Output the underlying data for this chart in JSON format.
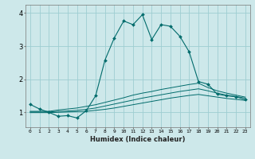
{
  "xlabel": "Humidex (Indice chaleur)",
  "bg_color": "#cde8ea",
  "grid_color": "#9ecdd1",
  "line_color": "#006b6b",
  "xlim": [
    -0.5,
    23.5
  ],
  "ylim": [
    0.55,
    4.25
  ],
  "yticks": [
    1,
    2,
    3,
    4
  ],
  "xticks": [
    0,
    1,
    2,
    3,
    4,
    5,
    6,
    7,
    8,
    9,
    10,
    11,
    12,
    13,
    14,
    15,
    16,
    17,
    18,
    19,
    20,
    21,
    22,
    23
  ],
  "line1_x": [
    0,
    1,
    2,
    3,
    4,
    5,
    6,
    7,
    8,
    9,
    10,
    11,
    12,
    13,
    14,
    15,
    16,
    17,
    18,
    19,
    20,
    21,
    22,
    23
  ],
  "line1_y": [
    1.24,
    1.1,
    1.0,
    0.88,
    0.9,
    0.83,
    1.05,
    1.5,
    2.58,
    3.25,
    3.76,
    3.65,
    3.95,
    3.2,
    3.65,
    3.6,
    3.3,
    2.83,
    1.93,
    1.85,
    1.55,
    1.5,
    1.47,
    1.38
  ],
  "line2_x": [
    0,
    1,
    2,
    3,
    4,
    5,
    6,
    7,
    8,
    9,
    10,
    11,
    12,
    13,
    14,
    15,
    16,
    17,
    18,
    19,
    20,
    21,
    22,
    23
  ],
  "line2_y": [
    1.03,
    1.03,
    1.03,
    1.07,
    1.1,
    1.13,
    1.18,
    1.23,
    1.3,
    1.37,
    1.44,
    1.52,
    1.58,
    1.63,
    1.69,
    1.74,
    1.79,
    1.84,
    1.88,
    1.75,
    1.65,
    1.58,
    1.52,
    1.46
  ],
  "line3_x": [
    0,
    1,
    2,
    3,
    4,
    5,
    6,
    7,
    8,
    9,
    10,
    11,
    12,
    13,
    14,
    15,
    16,
    17,
    18,
    19,
    20,
    21,
    22,
    23
  ],
  "line3_y": [
    1.01,
    1.01,
    1.01,
    1.03,
    1.04,
    1.06,
    1.09,
    1.13,
    1.19,
    1.25,
    1.31,
    1.37,
    1.43,
    1.48,
    1.53,
    1.58,
    1.63,
    1.67,
    1.71,
    1.65,
    1.58,
    1.52,
    1.48,
    1.43
  ],
  "line4_x": [
    0,
    1,
    2,
    3,
    4,
    5,
    6,
    7,
    8,
    9,
    10,
    11,
    12,
    13,
    14,
    15,
    16,
    17,
    18,
    19,
    20,
    21,
    22,
    23
  ],
  "line4_y": [
    0.99,
    0.99,
    0.99,
    1.0,
    1.01,
    1.02,
    1.03,
    1.06,
    1.09,
    1.13,
    1.18,
    1.23,
    1.28,
    1.33,
    1.38,
    1.43,
    1.47,
    1.51,
    1.54,
    1.5,
    1.46,
    1.42,
    1.39,
    1.36
  ]
}
